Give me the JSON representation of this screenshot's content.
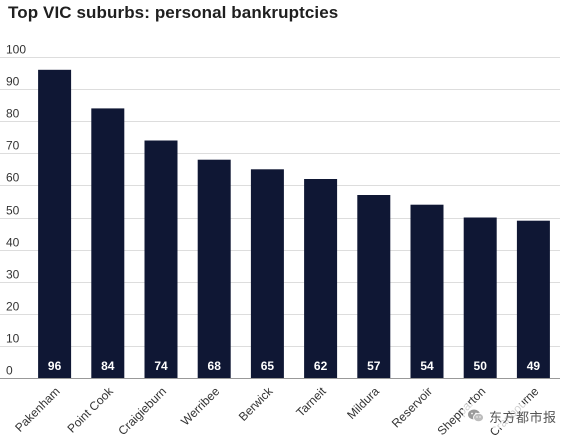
{
  "chart_data": {
    "type": "bar",
    "title": "Top VIC suburbs: personal bankruptcies",
    "xlabel": "",
    "ylabel": "",
    "categories": [
      "Pakenham",
      "Point Cook",
      "Craigieburn",
      "Werribee",
      "Berwick",
      "Tarneit",
      "Mildura",
      "Reservoir",
      "Shepparton",
      "Cranbourne"
    ],
    "values": [
      96,
      84,
      74,
      68,
      65,
      62,
      57,
      54,
      50,
      49
    ],
    "ylim": [
      0,
      100
    ],
    "yticks": [
      0,
      10,
      20,
      30,
      40,
      50,
      60,
      70,
      80,
      90,
      100
    ],
    "grid": true,
    "legend": "none",
    "colors": {
      "bar": "#0f1734",
      "grid": "#dddddd",
      "axis": "#999999",
      "bar_label": "#ffffff"
    }
  },
  "watermark": {
    "text": "东方都市报",
    "icon": "wechat-icon"
  }
}
